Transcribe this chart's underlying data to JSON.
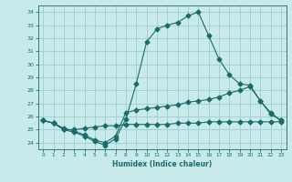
{
  "xlabel": "Humidex (Indice chaleur)",
  "xlim": [
    -0.5,
    23.5
  ],
  "ylim": [
    23.5,
    34.5
  ],
  "yticks": [
    24,
    25,
    26,
    27,
    28,
    29,
    30,
    31,
    32,
    33,
    34
  ],
  "xticks": [
    0,
    1,
    2,
    3,
    4,
    5,
    6,
    7,
    8,
    9,
    10,
    11,
    12,
    13,
    14,
    15,
    16,
    17,
    18,
    19,
    20,
    21,
    22,
    23
  ],
  "background_color": "#c8eaea",
  "grid_color": "#9ecece",
  "line_color": "#1a6b6b",
  "line1_x": [
    0,
    1,
    2,
    3,
    4,
    5,
    6,
    7,
    8,
    9,
    10,
    11,
    12,
    13,
    14,
    15,
    16,
    17,
    18,
    19,
    20,
    21,
    22,
    23
  ],
  "line1_y": [
    25.7,
    25.5,
    25.0,
    24.8,
    24.5,
    24.1,
    23.8,
    24.3,
    25.8,
    28.5,
    31.7,
    32.7,
    33.0,
    33.2,
    33.7,
    34.0,
    32.2,
    30.4,
    29.2,
    28.5,
    28.4,
    27.2,
    26.3,
    25.7
  ],
  "line2_x": [
    0,
    1,
    2,
    3,
    4,
    5,
    6,
    7,
    8,
    9,
    10,
    11,
    12,
    13,
    14,
    15,
    16,
    17,
    18,
    19,
    20,
    21,
    22,
    23
  ],
  "line2_y": [
    25.7,
    25.5,
    25.1,
    24.9,
    24.6,
    24.2,
    24.0,
    24.5,
    26.3,
    26.5,
    26.6,
    26.7,
    26.8,
    26.9,
    27.1,
    27.2,
    27.3,
    27.5,
    27.8,
    28.0,
    28.3,
    27.2,
    26.2,
    25.7
  ],
  "line3_x": [
    0,
    1,
    2,
    3,
    4,
    5,
    6,
    7,
    8,
    9,
    10,
    11,
    12,
    13,
    14,
    15,
    16,
    17,
    18,
    19,
    20,
    21,
    22,
    23
  ],
  "line3_y": [
    25.7,
    25.5,
    25.0,
    25.0,
    25.1,
    25.2,
    25.3,
    25.3,
    25.4,
    25.4,
    25.4,
    25.4,
    25.4,
    25.5,
    25.5,
    25.5,
    25.6,
    25.6,
    25.6,
    25.6,
    25.6,
    25.6,
    25.6,
    25.6
  ]
}
